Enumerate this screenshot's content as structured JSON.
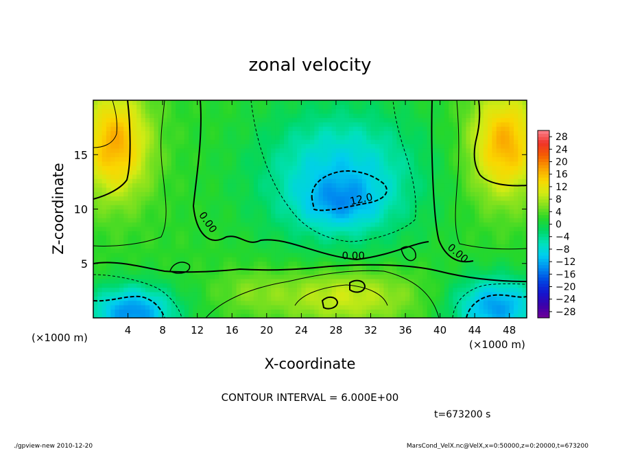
{
  "chart_data": {
    "type": "heatmap",
    "title": "zonal velocity",
    "xlabel": "X-coordinate",
    "ylabel": "Z-coordinate",
    "x_unit_label_left": "(×1000 m)",
    "x_unit_label_right": "(×1000 m)",
    "xlim": [
      0,
      50
    ],
    "ylim": [
      0,
      20
    ],
    "x_ticks": [
      4,
      8,
      12,
      16,
      20,
      24,
      28,
      32,
      36,
      40,
      44,
      48
    ],
    "y_ticks": [
      5,
      10,
      15
    ],
    "colorbar_ticks": [
      28,
      24,
      20,
      16,
      12,
      8,
      4,
      0,
      -4,
      -8,
      -12,
      -16,
      -20,
      -24,
      -28
    ],
    "colorbar_range": [
      -30,
      30
    ],
    "contour_interval_text": "CONTOUR INTERVAL = 6.000E+00",
    "time_text": "t=673200 s",
    "contour_labels": [
      {
        "text": "0.00",
        "x": 12.9,
        "y": 8.6,
        "angle": 55
      },
      {
        "text": "12.0",
        "x": 31.0,
        "y": 10.6,
        "angle": -12
      },
      {
        "text": "0.00",
        "x": 30.0,
        "y": 5.4,
        "angle": 0
      },
      {
        "text": "0.00",
        "x": 41.8,
        "y": 5.7,
        "angle": 40
      }
    ],
    "footer_left": "./gpview-new  2010-12-20",
    "footer_right": "MarsCond_VelX.nc@VelX,x=0:50000,z=0:20000,t=673200",
    "field_features": [
      {
        "note": "positive lobe",
        "x": 2.5,
        "y": 16,
        "value": 16
      },
      {
        "note": "positive lobe",
        "x": 47.5,
        "y": 16,
        "value": 16
      },
      {
        "note": "negative core",
        "x": 28.5,
        "y": 10.5,
        "value": -14
      },
      {
        "note": "negative lobe",
        "x": 4.5,
        "y": 1.0,
        "value": -14
      },
      {
        "note": "negative lobe",
        "x": 46.5,
        "y": 1.5,
        "value": -12
      },
      {
        "note": "positive band",
        "x": 29,
        "y": 2.5,
        "value": 9
      }
    ]
  }
}
